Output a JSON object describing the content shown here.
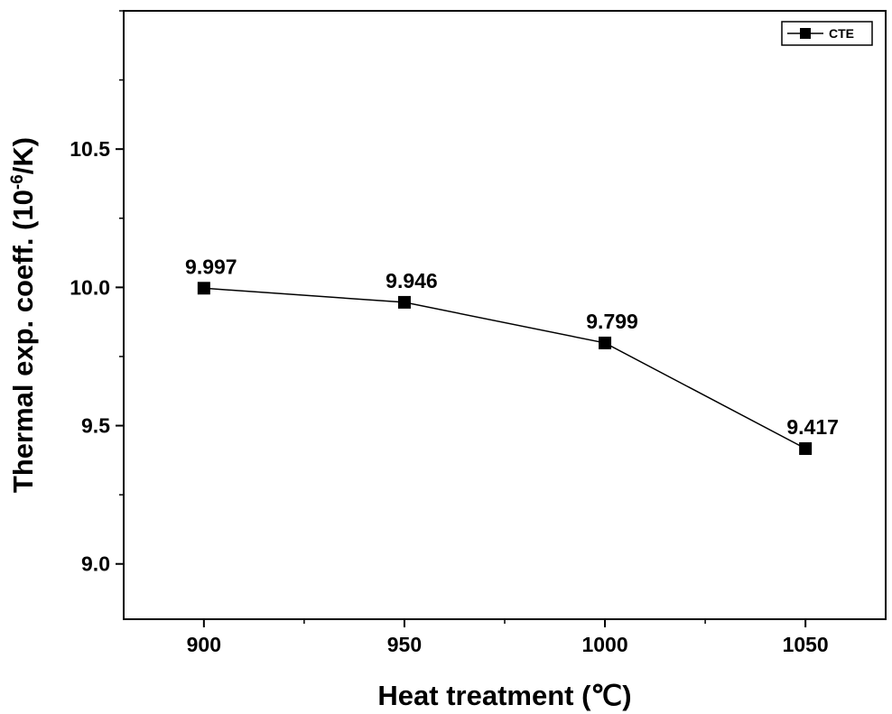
{
  "chart_data": {
    "type": "line",
    "xlabel": "Heat treatment (℃)",
    "ylabel_main": "Thermal exp. coeff. (10",
    "ylabel_sup": "-6",
    "ylabel_tail": "/K)",
    "xlim": [
      880,
      1070
    ],
    "ylim": [
      8.8,
      11.0
    ],
    "x_ticks": [
      900,
      950,
      1000,
      1050
    ],
    "y_ticks": [
      9.0,
      9.5,
      10.0,
      10.5
    ],
    "y_tick_labels": [
      "9.0",
      "9.5",
      "10.0",
      "10.5"
    ],
    "legend_position": "top-right",
    "series": [
      {
        "name": "CTE",
        "marker": "square",
        "color": "#000000",
        "x": [
          900,
          950,
          1000,
          1050
        ],
        "y": [
          9.997,
          9.946,
          9.799,
          9.417
        ],
        "labels": [
          "9.997",
          "9.946",
          "9.799",
          "9.417"
        ]
      }
    ]
  }
}
